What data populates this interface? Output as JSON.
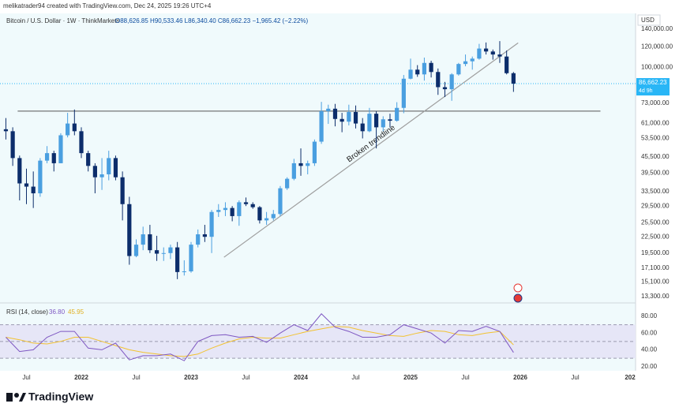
{
  "header": {
    "credit": "melikatrader94 created with TradingView.com, Dec 24, 2025 19:26 UTC+4"
  },
  "chart_data": {
    "type": "candlestick",
    "title": "Bitcoin / U.S. Dollar · 1W · ThinkMarkets",
    "ohlc_text": "O88,626.85 H90,533.46 L86,340.40 C86,662.23 −1,965.42 (−2.22%)",
    "currency": "USD",
    "log_scale": true,
    "up_color": "#4a9fe0",
    "down_color": "#0c2d6b",
    "xlim": [
      2021.259,
      2027.05
    ],
    "xticks": [
      {
        "value": 2021.5,
        "label": "Jul"
      },
      2022,
      {
        "value": 2022.5,
        "label": "Jul"
      },
      2023,
      {
        "value": 2023.5,
        "label": "Jul"
      },
      2024,
      {
        "value": 2024.5,
        "label": "Jul"
      },
      2025,
      {
        "value": 2025.5,
        "label": "Jul"
      },
      2026,
      {
        "value": 2026.5,
        "label": "Jul"
      },
      {
        "value": 2027,
        "label": "202"
      }
    ],
    "ylim": [
      12660,
      160800
    ],
    "yticks": [
      {
        "value": 140000,
        "label": "140,000.00"
      },
      {
        "value": 120000,
        "label": "120,000.00"
      },
      {
        "value": 100000,
        "label": "100,000.00"
      },
      {
        "value": 73000,
        "label": "73,000.00"
      },
      {
        "value": 61000,
        "label": "61,000.00"
      },
      {
        "value": 53500,
        "label": "53,500.00"
      },
      {
        "value": 45500,
        "label": "45,500.00"
      },
      {
        "value": 39500,
        "label": "39,500.00"
      },
      {
        "value": 33500,
        "label": "33,500.00"
      },
      {
        "value": 29500,
        "label": "29,500.00"
      },
      {
        "value": 25500,
        "label": "25,500.00"
      },
      {
        "value": 22500,
        "label": "22,500.00"
      },
      {
        "value": 19500,
        "label": "19,500.00"
      },
      {
        "value": 17100,
        "label": "17,100.00"
      },
      {
        "value": 15100,
        "label": "15,100.00"
      },
      {
        "value": 13300,
        "label": "13,300.00"
      }
    ],
    "x": [
      2021.3125,
      2021.375,
      2021.4375,
      2021.5,
      2021.5625,
      2021.625,
      2021.6875,
      2021.75,
      2021.8125,
      2021.875,
      2021.9375,
      2022.0,
      2022.0625,
      2022.125,
      2022.1875,
      2022.25,
      2022.3125,
      2022.375,
      2022.4375,
      2022.5,
      2022.5625,
      2022.625,
      2022.6875,
      2022.75,
      2022.8125,
      2022.875,
      2022.9375,
      2023.0,
      2023.0625,
      2023.125,
      2023.1875,
      2023.25,
      2023.3125,
      2023.375,
      2023.4375,
      2023.5,
      2023.5625,
      2023.625,
      2023.6875,
      2023.75,
      2023.8125,
      2023.875,
      2023.9375,
      2024.0,
      2024.0625,
      2024.125,
      2024.1875,
      2024.25,
      2024.3125,
      2024.375,
      2024.4375,
      2024.5,
      2024.5625,
      2024.625,
      2024.6875,
      2024.75,
      2024.8125,
      2024.875,
      2024.9375,
      2025.0,
      2025.0625,
      2025.125,
      2025.1875,
      2025.25,
      2025.3125,
      2025.375,
      2025.4375,
      2025.5,
      2025.5625,
      2025.625,
      2025.6875,
      2025.75,
      2025.8125,
      2025.875,
      2025.9375
    ],
    "candles": [
      [
        58000,
        64000,
        53000,
        57000
      ],
      [
        57000,
        59000,
        42000,
        45000
      ],
      [
        45000,
        46000,
        31000,
        36000
      ],
      [
        36000,
        41000,
        30000,
        35000
      ],
      [
        35000,
        40000,
        29000,
        33000
      ],
      [
        33000,
        45000,
        32000,
        44000
      ],
      [
        44000,
        50000,
        43000,
        47000
      ],
      [
        47000,
        48000,
        40000,
        43000
      ],
      [
        43000,
        56000,
        43000,
        55000
      ],
      [
        55000,
        67000,
        54000,
        61000
      ],
      [
        61000,
        69000,
        55000,
        57000
      ],
      [
        57000,
        59000,
        45000,
        47000
      ],
      [
        47000,
        48000,
        40000,
        42000
      ],
      [
        42000,
        43000,
        33000,
        38000
      ],
      [
        38000,
        45000,
        34000,
        39000
      ],
      [
        39000,
        48000,
        37000,
        45000
      ],
      [
        45000,
        46000,
        37000,
        38000
      ],
      [
        38000,
        40000,
        26000,
        30000
      ],
      [
        30000,
        32000,
        17600,
        19000
      ],
      [
        19000,
        22000,
        18800,
        21000
      ],
      [
        21000,
        24600,
        20000,
        23000
      ],
      [
        23000,
        25000,
        19500,
        20000
      ],
      [
        20000,
        22700,
        18200,
        19400
      ],
      [
        19400,
        20500,
        18200,
        19500
      ],
      [
        19500,
        21000,
        18500,
        20500
      ],
      [
        20500,
        21500,
        15500,
        16500
      ],
      [
        16500,
        18300,
        16000,
        16600
      ],
      [
        16600,
        21500,
        16400,
        21000
      ],
      [
        21000,
        24000,
        20500,
        23000
      ],
      [
        23000,
        25000,
        21500,
        22500
      ],
      [
        22500,
        28500,
        19500,
        28000
      ],
      [
        28000,
        30000,
        26800,
        28500
      ],
      [
        28500,
        30500,
        27000,
        29000
      ],
      [
        29000,
        29500,
        25800,
        27000
      ],
      [
        27000,
        31000,
        24800,
        30500
      ],
      [
        30500,
        31800,
        29500,
        30000
      ],
      [
        30000,
        30500,
        28800,
        29200
      ],
      [
        29200,
        29500,
        25300,
        26000
      ],
      [
        26000,
        28000,
        25000,
        26500
      ],
      [
        26500,
        28500,
        26000,
        27500
      ],
      [
        27500,
        35200,
        27000,
        34500
      ],
      [
        34500,
        38000,
        34000,
        37500
      ],
      [
        37500,
        44700,
        37000,
        43000
      ],
      [
        43000,
        49000,
        38500,
        42000
      ],
      [
        42000,
        44000,
        39000,
        43000
      ],
      [
        43000,
        53000,
        42000,
        52000
      ],
      [
        52000,
        73800,
        51000,
        68000
      ],
      [
        68000,
        72000,
        60800,
        69500
      ],
      [
        69500,
        72500,
        59500,
        63500
      ],
      [
        63500,
        67000,
        56500,
        62000
      ],
      [
        62000,
        72000,
        60000,
        67500
      ],
      [
        67500,
        71500,
        58400,
        61000
      ],
      [
        61000,
        64000,
        53500,
        57000
      ],
      [
        57000,
        70000,
        56500,
        66500
      ],
      [
        66500,
        68000,
        49000,
        59000
      ],
      [
        59000,
        65000,
        57000,
        63300
      ],
      [
        63300,
        66500,
        58900,
        62500
      ],
      [
        62500,
        73600,
        62000,
        70000
      ],
      [
        70000,
        93500,
        66800,
        90500
      ],
      [
        90500,
        108000,
        90000,
        98000
      ],
      [
        98000,
        102000,
        92000,
        94000
      ],
      [
        94000,
        109000,
        89000,
        104000
      ],
      [
        104000,
        106000,
        91500,
        96000
      ],
      [
        96000,
        99000,
        78500,
        84000
      ],
      [
        84000,
        88000,
        77000,
        82500
      ],
      [
        82500,
        95000,
        74500,
        94000
      ],
      [
        94000,
        104000,
        93000,
        103000
      ],
      [
        103000,
        112000,
        101000,
        105500
      ],
      [
        105500,
        110000,
        98000,
        108000
      ],
      [
        108000,
        123000,
        107000,
        118000
      ],
      [
        118000,
        124500,
        112000,
        115000
      ],
      [
        115000,
        117000,
        107000,
        112000
      ],
      [
        112000,
        126000,
        104000,
        110000
      ],
      [
        110000,
        116000,
        94000,
        95000
      ],
      [
        95000,
        96000,
        80600,
        86662.23
      ]
    ],
    "last_price": 86662.23,
    "last_price_label": "86,662.23",
    "countdown": "4d 9h",
    "last_price_color": "#29b6f6",
    "trendline": {
      "label": "Broken trendline",
      "x": [
        2023.3,
        2025.98
      ],
      "y": [
        18800,
        124000
      ],
      "color": "#9e9e9e"
    },
    "hline": {
      "y": 68000,
      "x": [
        2021.42,
        2026.73
      ],
      "color": "#555555"
    },
    "rsi": {
      "title": "RSI (14, close)",
      "color": "#7e57c2",
      "ma_color": "#f2c230",
      "value_label": "36.80",
      "ma_label": "45.95",
      "ylim": [
        15,
        95
      ],
      "yticks": [
        {
          "value": 80,
          "label": "80.00"
        },
        {
          "value": 60,
          "label": "60.00"
        },
        {
          "value": 40,
          "label": "40.00"
        },
        {
          "value": 20,
          "label": "20.00"
        }
      ],
      "band": [
        30,
        70
      ],
      "mid": 50,
      "x": [
        2021.3125,
        2021.4375,
        2021.5625,
        2021.6875,
        2021.8125,
        2021.9375,
        2022.0625,
        2022.1875,
        2022.3125,
        2022.4375,
        2022.5625,
        2022.6875,
        2022.8125,
        2022.9375,
        2023.0625,
        2023.1875,
        2023.3125,
        2023.4375,
        2023.5625,
        2023.6875,
        2023.8125,
        2023.9375,
        2024.0625,
        2024.1875,
        2024.3125,
        2024.4375,
        2024.5625,
        2024.6875,
        2024.8125,
        2024.9375,
        2025.0625,
        2025.1875,
        2025.3125,
        2025.4375,
        2025.5625,
        2025.6875,
        2025.8125,
        2025.9375
      ],
      "values": [
        55,
        38,
        40,
        55,
        62,
        62,
        42,
        40,
        48,
        28,
        33,
        33,
        35,
        27,
        50,
        57,
        58,
        55,
        56,
        49,
        60,
        70,
        63,
        83,
        67,
        62,
        55,
        55,
        58,
        70,
        65,
        60,
        48,
        63,
        62,
        68,
        62,
        36.8
      ],
      "ma": [
        55,
        52,
        48,
        47,
        50,
        55,
        55,
        50,
        45,
        40,
        37,
        35,
        33,
        32,
        35,
        42,
        48,
        53,
        55,
        54,
        54,
        58,
        62,
        65,
        68,
        67,
        63,
        60,
        57,
        56,
        60,
        63,
        62,
        58,
        57,
        60,
        62,
        45.95
      ]
    }
  },
  "footer": {
    "logo": "TradingView"
  }
}
